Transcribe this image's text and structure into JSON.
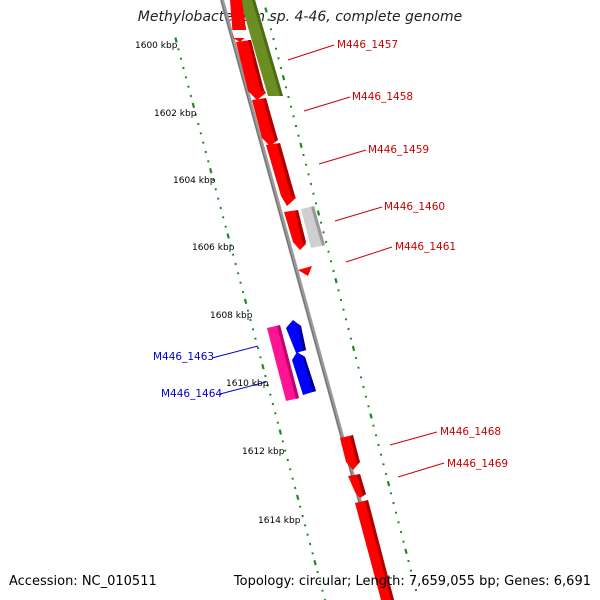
{
  "title": "Methylobacterium sp. 4-46, complete genome",
  "footer": {
    "accession": "Accession: NC_010511",
    "summary": "Topology: circular; Length: 7,659,055 bp; Genes: 6,691"
  },
  "colors": {
    "backbone": "#8a8a8a",
    "tick": "#1e8a1e",
    "gene_red": "#ff0000",
    "gene_olive": "#6b8e23",
    "gene_gray": "#c8c8c8",
    "gene_blue": "#0000ff",
    "gene_magenta": "#ff1493",
    "label_red": "#cc0000",
    "label_blue": "#0000cc"
  },
  "scale_labels": [
    "1600 kbp",
    "1602 kbp",
    "1604 kbp",
    "1606 kbp",
    "1608 kbp",
    "1610 kbp",
    "1612 kbp",
    "1614 kbp"
  ],
  "gene_labels": [
    {
      "text": "M446_1457",
      "side": "right",
      "color": "label_red"
    },
    {
      "text": "M446_1458",
      "side": "right",
      "color": "label_red"
    },
    {
      "text": "M446_1459",
      "side": "right",
      "color": "label_red"
    },
    {
      "text": "M446_1460",
      "side": "right",
      "color": "label_red"
    },
    {
      "text": "M446_1461",
      "side": "right",
      "color": "label_red"
    },
    {
      "text": "M446_1463",
      "side": "left",
      "color": "label_blue"
    },
    {
      "text": "M446_1464",
      "side": "left",
      "color": "label_blue"
    },
    {
      "text": "M446_1468",
      "side": "right",
      "color": "label_red"
    },
    {
      "text": "M446_1469",
      "side": "right",
      "color": "label_red"
    }
  ]
}
